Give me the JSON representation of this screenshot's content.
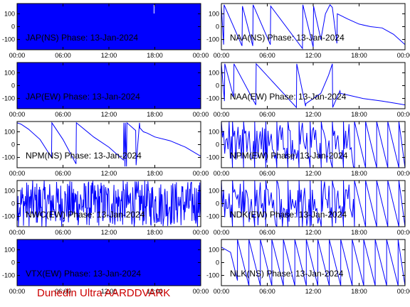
{
  "footer": "Dunedin Ultra AARDDVARK",
  "colors": {
    "trace": "#0000ff",
    "axis": "#000000",
    "footer": "#cc0000",
    "label": "#000000"
  },
  "chart_data": [
    {
      "type": "line",
      "panel": "JAP(NS)",
      "title": "JAP(NS) Phase: 13-Jan-2024",
      "xlabel": "",
      "ylabel": "",
      "x_ticks": [
        "00:00",
        "06:00",
        "12:00",
        "18:00",
        "00:00"
      ],
      "y_ticks": [
        100,
        0,
        -100
      ],
      "xlim_hours": [
        0,
        24
      ],
      "ylim": [
        -180,
        180
      ],
      "series": [
        {
          "style": "saturated",
          "t": [
            0,
            24
          ],
          "y": [
            0,
            0
          ],
          "spikes": [
            17.9
          ]
        }
      ]
    },
    {
      "type": "line",
      "panel": "NAA(NS)",
      "title": "NAA(NS) Phase: 13-Jan-2024",
      "xlabel": "",
      "ylabel": "",
      "x_ticks": [
        "00:00",
        "06:00",
        "12:00",
        "18:00",
        "00:00"
      ],
      "y_ticks": [
        100,
        0,
        -100
      ],
      "xlim_hours": [
        0,
        24
      ],
      "ylim": [
        -180,
        180
      ],
      "series": [
        {
          "style": "line",
          "t": [
            0,
            0.3,
            0.35,
            2.7,
            2.75,
            4.1,
            4.15,
            6.4,
            6.45,
            10.6,
            10.65,
            12.0,
            12.05,
            13.0,
            13.6,
            14.2,
            14.5,
            15.1,
            15.15,
            16.5,
            18.0,
            19.5,
            21.0,
            22.5,
            24.0
          ],
          "y": [
            160,
            -140,
            170,
            -150,
            160,
            -150,
            170,
            -140,
            160,
            -170,
            170,
            -160,
            160,
            -100,
            100,
            170,
            150,
            -130,
            100,
            60,
            20,
            0,
            -10,
            -60,
            -140
          ]
        }
      ]
    },
    {
      "type": "line",
      "panel": "JAP(EW)",
      "title": "JAP(EW) Phase: 13-Jan-2024",
      "xlabel": "",
      "ylabel": "",
      "x_ticks": [
        "00:00",
        "06:00",
        "12:00",
        "18:00",
        "00:00"
      ],
      "y_ticks": [
        100,
        0,
        -100
      ],
      "xlim_hours": [
        0,
        24
      ],
      "ylim": [
        -180,
        180
      ],
      "series": [
        {
          "style": "saturated",
          "t": [
            0,
            24
          ],
          "y": [
            0,
            0
          ],
          "spikes": []
        }
      ]
    },
    {
      "type": "line",
      "panel": "NAA(EW)",
      "title": "NAA(EW) Phase: 13-Jan-2024",
      "xlabel": "",
      "ylabel": "",
      "x_ticks": [
        "00:00",
        "06:00",
        "12:00",
        "18:00",
        "00:00"
      ],
      "y_ticks": [
        100,
        0,
        -100
      ],
      "xlim_hours": [
        0,
        24
      ],
      "ylim": [
        -180,
        180
      ],
      "series": [
        {
          "style": "line",
          "t": [
            0,
            0.4,
            0.45,
            1.6,
            1.65,
            4.5,
            4.55,
            9.8,
            9.85,
            11.0,
            11.05,
            13.0,
            14.0,
            14.5,
            14.55,
            15.5,
            15.55,
            17.0,
            18.5,
            21.0,
            23.0,
            24.0
          ],
          "y": [
            170,
            -120,
            170,
            -90,
            170,
            -150,
            170,
            -170,
            170,
            -160,
            -140,
            -60,
            80,
            170,
            -170,
            -40,
            -60,
            -80,
            -100,
            -120,
            -140,
            -150
          ]
        }
      ]
    },
    {
      "type": "line",
      "panel": "NPM(NS)",
      "title": "NPM(NS) Phase: 13-Jan-2024",
      "xlabel": "",
      "ylabel": "",
      "x_ticks": [
        "00:00",
        "06:00",
        "12:00",
        "18:00",
        "00:00"
      ],
      "y_ticks": [
        100,
        0,
        -100
      ],
      "xlim_hours": [
        0,
        24
      ],
      "ylim": [
        -180,
        180
      ],
      "series": [
        {
          "style": "line",
          "t": [
            0,
            0.5,
            1.5,
            3.0,
            4.5,
            4.55,
            6.0,
            7.7,
            7.75,
            10.0,
            12.0,
            13.9,
            13.95,
            14.1,
            14.15,
            14.3,
            14.35,
            15.5,
            15.55,
            16.0,
            16.05,
            16.5,
            17.0,
            18.0,
            20.0,
            22.0,
            24.0
          ],
          "y": [
            170,
            160,
            120,
            40,
            -100,
            170,
            40,
            -150,
            170,
            60,
            -20,
            -120,
            170,
            -170,
            170,
            -170,
            170,
            110,
            -160,
            170,
            130,
            100,
            90,
            60,
            30,
            -20,
            -90
          ]
        }
      ]
    },
    {
      "type": "line",
      "panel": "NPM(EW)",
      "title": "NPM(EW) Phase: 13-Jan-2024",
      "xlabel": "",
      "ylabel": "",
      "x_ticks": [
        "00:00",
        "06:00",
        "12:00",
        "18:00",
        "00:00"
      ],
      "y_ticks": [
        100,
        0,
        -100
      ],
      "xlim_hours": [
        0,
        24
      ],
      "ylim": [
        -180,
        180
      ],
      "series": [
        {
          "style": "sawtooth",
          "t": [
            0,
            24
          ],
          "y": [
            -180,
            180
          ],
          "period_hours": 1.45,
          "noisy_until": 16.5
        }
      ]
    },
    {
      "type": "line",
      "panel": "NWC(EW)",
      "title": "NWC(EW) Phase: 13-Jan-2024",
      "xlabel": "",
      "ylabel": "",
      "x_ticks": [
        "00:00",
        "06:00",
        "12:00",
        "18:00",
        "00:00"
      ],
      "y_ticks": [
        100,
        0,
        -100
      ],
      "xlim_hours": [
        0,
        24
      ],
      "ylim": [
        -180,
        180
      ],
      "series": [
        {
          "style": "noise",
          "t": [
            0,
            24
          ],
          "y": [
            -180,
            180
          ]
        }
      ]
    },
    {
      "type": "line",
      "panel": "NDK(EW)",
      "title": "NDK(EW) Phase: 13-Jan-2024",
      "xlabel": "",
      "ylabel": "",
      "x_ticks": [
        "00:00",
        "06:00",
        "12:00",
        "18:00",
        "00:00"
      ],
      "y_ticks": [
        100,
        0,
        -100
      ],
      "xlim_hours": [
        0,
        24
      ],
      "ylim": [
        -180,
        180
      ],
      "series": [
        {
          "style": "sawtooth",
          "t": [
            0,
            24
          ],
          "y": [
            -180,
            180
          ],
          "period_hours": 1.45,
          "noisy_until": 16.0
        }
      ]
    },
    {
      "type": "line",
      "panel": "VTX(EW)",
      "title": "VTX(EW) Phase: 13-Jan-2024",
      "xlabel": "",
      "ylabel": "",
      "x_ticks": [
        "00:00",
        "06:00",
        "12:00",
        "18:00",
        "00:00"
      ],
      "y_ticks": [
        100,
        0,
        -100
      ],
      "xlim_hours": [
        0,
        24
      ],
      "ylim": [
        -180,
        180
      ],
      "series": [
        {
          "style": "saturated",
          "t": [
            0,
            24
          ],
          "y": [
            0,
            0
          ],
          "spikes": []
        }
      ]
    },
    {
      "type": "line",
      "panel": "NLK(NS)",
      "title": "NLK(NS) Phase: 13-Jan-2024",
      "xlabel": "",
      "ylabel": "",
      "x_ticks": [
        "00:00",
        "06:00",
        "12:00",
        "18:00",
        "00:00"
      ],
      "y_ticks": [
        100,
        0,
        -100
      ],
      "xlim_hours": [
        0,
        24
      ],
      "ylim": [
        -180,
        180
      ],
      "series": [
        {
          "style": "sawtooth",
          "t": [
            0,
            24
          ],
          "y": [
            -180,
            180
          ],
          "period_hours": 1.5,
          "noisy_until": 0,
          "start_hours": 2.1,
          "lead": [
            [
              0,
              120
            ],
            [
              1.2,
              80
            ],
            [
              2.1,
              -140
            ]
          ]
        }
      ]
    }
  ]
}
